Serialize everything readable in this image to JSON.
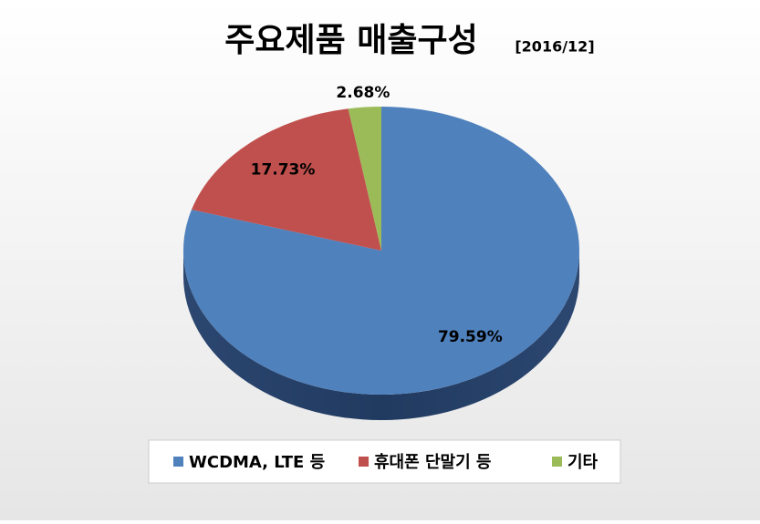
{
  "chart_data": {
    "type": "pie",
    "title": "주요제품 매출구성",
    "subtitle": "[2016/12]",
    "categories": [
      "WCDMA, LTE 등",
      "휴대폰 단말기 등",
      "기타"
    ],
    "values": [
      79.59,
      17.73,
      2.68
    ],
    "value_labels": [
      "79.59%",
      "17.73%",
      "2.68%"
    ],
    "colors": [
      "#4f81bd",
      "#c0504d",
      "#9bbb59"
    ]
  }
}
